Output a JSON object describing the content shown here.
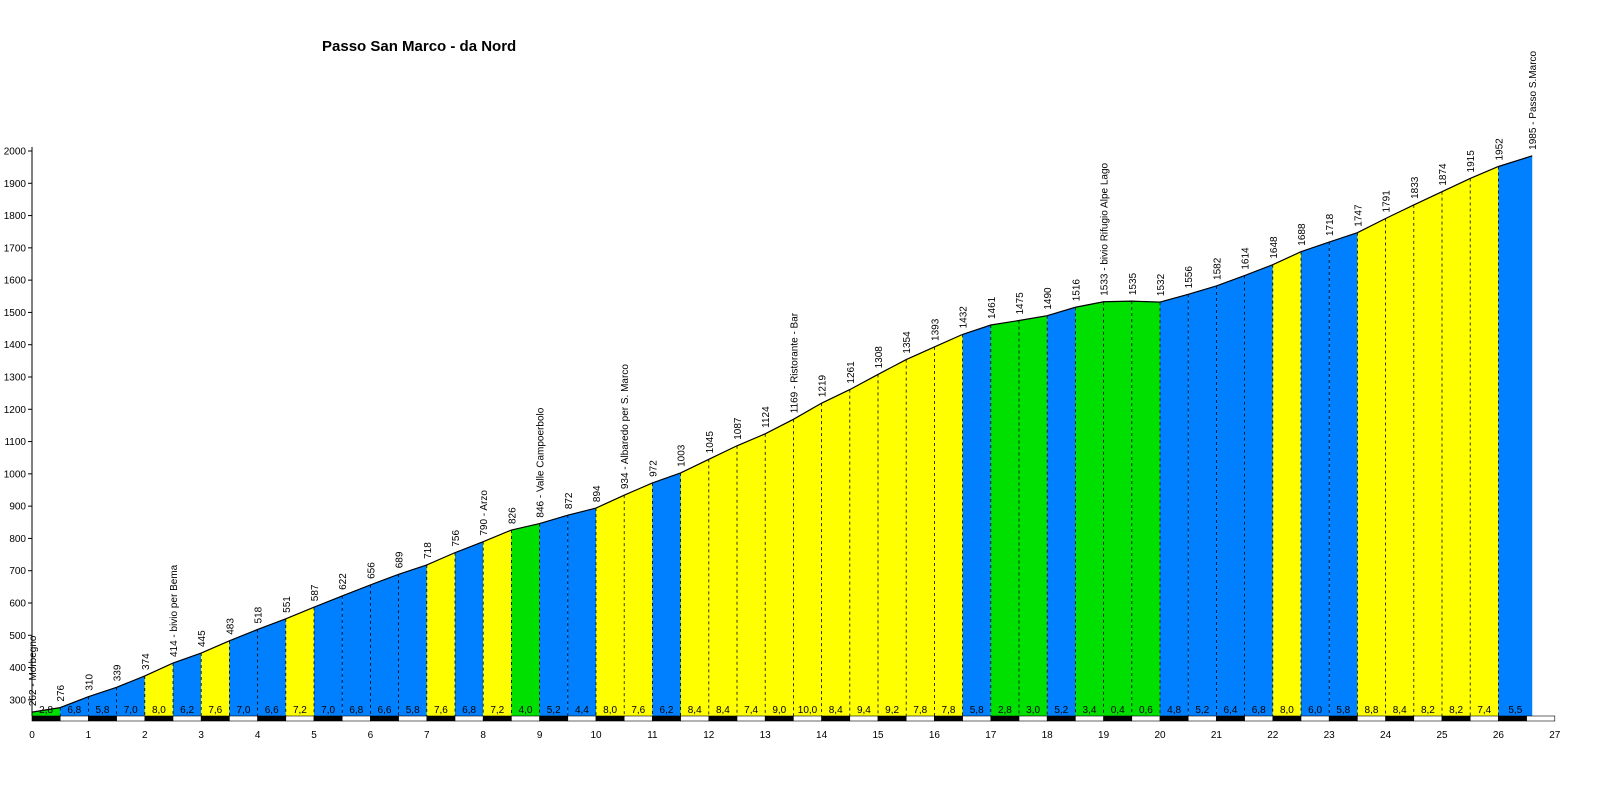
{
  "chart_data": {
    "type": "area",
    "title": "Passo San Marco - da Nord",
    "xlabel": "",
    "ylabel": "",
    "xlim": [
      0,
      27
    ],
    "ylim": [
      250,
      2000
    ],
    "grid": false,
    "legend": "none",
    "x_ticks": [
      0,
      1,
      2,
      3,
      4,
      5,
      6,
      7,
      8,
      9,
      10,
      11,
      12,
      13,
      14,
      15,
      16,
      17,
      18,
      19,
      20,
      21,
      22,
      23,
      24,
      25,
      26,
      27
    ],
    "y_ticks": [
      2000,
      1900,
      1800,
      1700,
      1600,
      1500,
      1400,
      1300,
      1200,
      1100,
      1000,
      900,
      800,
      700,
      600,
      500,
      400,
      300
    ],
    "gradient_colors": {
      "green": "#00e000",
      "blue": "#0080ff",
      "yellow": "#ffff00"
    },
    "points": [
      {
        "x": 0.0,
        "y": 262,
        "label": "262 - Morbegno"
      },
      {
        "x": 0.5,
        "y": 276,
        "label": "276"
      },
      {
        "x": 1.0,
        "y": 310,
        "label": "310"
      },
      {
        "x": 1.5,
        "y": 339,
        "label": "339"
      },
      {
        "x": 2.0,
        "y": 374,
        "label": "374"
      },
      {
        "x": 2.5,
        "y": 414,
        "label": "414 - bivio per Bema"
      },
      {
        "x": 3.0,
        "y": 445,
        "label": "445"
      },
      {
        "x": 3.5,
        "y": 483,
        "label": "483"
      },
      {
        "x": 4.0,
        "y": 518,
        "label": "518"
      },
      {
        "x": 4.5,
        "y": 551,
        "label": "551"
      },
      {
        "x": 5.0,
        "y": 587,
        "label": "587"
      },
      {
        "x": 5.5,
        "y": 622,
        "label": "622"
      },
      {
        "x": 6.0,
        "y": 656,
        "label": "656"
      },
      {
        "x": 6.5,
        "y": 689,
        "label": "689"
      },
      {
        "x": 7.0,
        "y": 718,
        "label": "718"
      },
      {
        "x": 7.5,
        "y": 756,
        "label": "756"
      },
      {
        "x": 8.0,
        "y": 790,
        "label": "790 - Arzo"
      },
      {
        "x": 8.5,
        "y": 826,
        "label": "826"
      },
      {
        "x": 9.0,
        "y": 846,
        "label": "846 - Valle Campoerbolo"
      },
      {
        "x": 9.5,
        "y": 872,
        "label": "872"
      },
      {
        "x": 10.0,
        "y": 894,
        "label": "894"
      },
      {
        "x": 10.5,
        "y": 934,
        "label": "934 - Albaredo per S. Marco"
      },
      {
        "x": 11.0,
        "y": 972,
        "label": "972"
      },
      {
        "x": 11.5,
        "y": 1003,
        "label": "1003"
      },
      {
        "x": 12.0,
        "y": 1045,
        "label": "1045"
      },
      {
        "x": 12.5,
        "y": 1087,
        "label": "1087"
      },
      {
        "x": 13.0,
        "y": 1124,
        "label": "1124"
      },
      {
        "x": 13.5,
        "y": 1169,
        "label": "1169 - Ristorante - Bar"
      },
      {
        "x": 14.0,
        "y": 1219,
        "label": "1219"
      },
      {
        "x": 14.5,
        "y": 1261,
        "label": "1261"
      },
      {
        "x": 15.0,
        "y": 1308,
        "label": "1308"
      },
      {
        "x": 15.5,
        "y": 1354,
        "label": "1354"
      },
      {
        "x": 16.0,
        "y": 1393,
        "label": "1393"
      },
      {
        "x": 16.5,
        "y": 1432,
        "label": "1432"
      },
      {
        "x": 17.0,
        "y": 1461,
        "label": "1461"
      },
      {
        "x": 17.5,
        "y": 1475,
        "label": "1475"
      },
      {
        "x": 18.0,
        "y": 1490,
        "label": "1490"
      },
      {
        "x": 18.5,
        "y": 1516,
        "label": "1516"
      },
      {
        "x": 19.0,
        "y": 1533,
        "label": "1533 - bivio Rifugio Alpe Lago"
      },
      {
        "x": 19.5,
        "y": 1535,
        "label": "1535"
      },
      {
        "x": 20.0,
        "y": 1532,
        "label": "1532"
      },
      {
        "x": 20.5,
        "y": 1556,
        "label": "1556"
      },
      {
        "x": 21.0,
        "y": 1582,
        "label": "1582"
      },
      {
        "x": 21.5,
        "y": 1614,
        "label": "1614"
      },
      {
        "x": 22.0,
        "y": 1648,
        "label": "1648"
      },
      {
        "x": 22.5,
        "y": 1688,
        "label": "1688"
      },
      {
        "x": 23.0,
        "y": 1718,
        "label": "1718"
      },
      {
        "x": 23.5,
        "y": 1747,
        "label": "1747"
      },
      {
        "x": 24.0,
        "y": 1791,
        "label": "1791"
      },
      {
        "x": 24.5,
        "y": 1833,
        "label": "1833"
      },
      {
        "x": 25.0,
        "y": 1874,
        "label": "1874"
      },
      {
        "x": 25.5,
        "y": 1915,
        "label": "1915"
      },
      {
        "x": 26.0,
        "y": 1952,
        "label": "1952"
      },
      {
        "x": 26.6,
        "y": 1985,
        "label": "1985 - Passo S.Marco"
      }
    ],
    "segments": [
      {
        "gradient": "2,8",
        "color": "green"
      },
      {
        "gradient": "6,8",
        "color": "blue"
      },
      {
        "gradient": "5,8",
        "color": "blue"
      },
      {
        "gradient": "7,0",
        "color": "blue"
      },
      {
        "gradient": "8,0",
        "color": "yellow"
      },
      {
        "gradient": "6,2",
        "color": "blue"
      },
      {
        "gradient": "7,6",
        "color": "yellow"
      },
      {
        "gradient": "7,0",
        "color": "blue"
      },
      {
        "gradient": "6,6",
        "color": "blue"
      },
      {
        "gradient": "7,2",
        "color": "yellow"
      },
      {
        "gradient": "7,0",
        "color": "blue"
      },
      {
        "gradient": "6,8",
        "color": "blue"
      },
      {
        "gradient": "6,6",
        "color": "blue"
      },
      {
        "gradient": "5,8",
        "color": "blue"
      },
      {
        "gradient": "7,6",
        "color": "yellow"
      },
      {
        "gradient": "6,8",
        "color": "blue"
      },
      {
        "gradient": "7,2",
        "color": "yellow"
      },
      {
        "gradient": "4,0",
        "color": "green"
      },
      {
        "gradient": "5,2",
        "color": "blue"
      },
      {
        "gradient": "4,4",
        "color": "blue"
      },
      {
        "gradient": "8,0",
        "color": "yellow"
      },
      {
        "gradient": "7,6",
        "color": "yellow"
      },
      {
        "gradient": "6,2",
        "color": "blue"
      },
      {
        "gradient": "8,4",
        "color": "yellow"
      },
      {
        "gradient": "8,4",
        "color": "yellow"
      },
      {
        "gradient": "7,4",
        "color": "yellow"
      },
      {
        "gradient": "9,0",
        "color": "yellow"
      },
      {
        "gradient": "10,0",
        "color": "yellow"
      },
      {
        "gradient": "8,4",
        "color": "yellow"
      },
      {
        "gradient": "9,4",
        "color": "yellow"
      },
      {
        "gradient": "9,2",
        "color": "yellow"
      },
      {
        "gradient": "7,8",
        "color": "yellow"
      },
      {
        "gradient": "7,8",
        "color": "yellow"
      },
      {
        "gradient": "5,8",
        "color": "blue"
      },
      {
        "gradient": "2,8",
        "color": "green"
      },
      {
        "gradient": "3,0",
        "color": "green"
      },
      {
        "gradient": "5,2",
        "color": "blue"
      },
      {
        "gradient": "3,4",
        "color": "green"
      },
      {
        "gradient": "0,4",
        "color": "green"
      },
      {
        "gradient": "0,6",
        "color": "green"
      },
      {
        "gradient": "4,8",
        "color": "blue"
      },
      {
        "gradient": "5,2",
        "color": "blue"
      },
      {
        "gradient": "6,4",
        "color": "blue"
      },
      {
        "gradient": "6,8",
        "color": "blue"
      },
      {
        "gradient": "8,0",
        "color": "yellow"
      },
      {
        "gradient": "6,0",
        "color": "blue"
      },
      {
        "gradient": "5,8",
        "color": "blue"
      },
      {
        "gradient": "8,8",
        "color": "yellow"
      },
      {
        "gradient": "8,4",
        "color": "yellow"
      },
      {
        "gradient": "8,2",
        "color": "yellow"
      },
      {
        "gradient": "8,2",
        "color": "yellow"
      },
      {
        "gradient": "7,4",
        "color": "yellow"
      },
      {
        "gradient": "5,5",
        "color": "blue"
      }
    ]
  }
}
